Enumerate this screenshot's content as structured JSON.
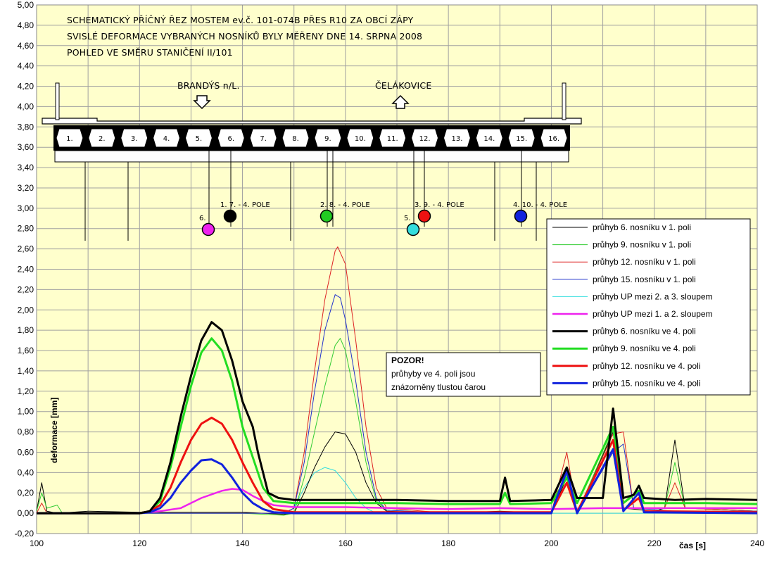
{
  "chart_data": {
    "type": "line",
    "xlabel": "čas [s]",
    "ylabel": "deformace [mm]",
    "xlim": [
      100,
      240
    ],
    "ylim": [
      -0.2,
      5.0
    ],
    "xticks": [
      100,
      120,
      140,
      160,
      180,
      200,
      220,
      240
    ],
    "yticks": [
      "-0,20",
      "0,00",
      "0,20",
      "0,40",
      "0,60",
      "0,80",
      "1,00",
      "1,20",
      "1,40",
      "1,60",
      "1,80",
      "2,00",
      "2,20",
      "2,40",
      "2,60",
      "2,80",
      "3,00",
      "3,20",
      "3,40",
      "3,60",
      "3,80",
      "4,00",
      "4,20",
      "4,40",
      "4,60",
      "4,80",
      "5,00"
    ],
    "grid": true,
    "legend_position": "right",
    "series": [
      {
        "name": "průhyb 6. nosníku v 1. poli",
        "color": "#000000",
        "width": 1,
        "points": [
          [
            100,
            0.02
          ],
          [
            101,
            0.3
          ],
          [
            102,
            0.02
          ],
          [
            104,
            0.0
          ],
          [
            110,
            0.02
          ],
          [
            120,
            0.01
          ],
          [
            140,
            0.01
          ],
          [
            148,
            -0.01
          ],
          [
            150,
            0.0
          ],
          [
            152,
            0.2
          ],
          [
            154,
            0.45
          ],
          [
            156,
            0.65
          ],
          [
            158,
            0.8
          ],
          [
            160,
            0.78
          ],
          [
            162,
            0.6
          ],
          [
            164,
            0.3
          ],
          [
            166,
            0.1
          ],
          [
            168,
            0.02
          ],
          [
            180,
            0.0
          ],
          [
            190,
            0.02
          ],
          [
            200,
            0.0
          ],
          [
            203,
            0.35
          ],
          [
            205,
            0.0
          ],
          [
            212,
            0.8
          ],
          [
            214,
            0.05
          ],
          [
            220,
            0.02
          ],
          [
            222,
            0.05
          ],
          [
            224,
            0.72
          ],
          [
            226,
            0.05
          ],
          [
            240,
            0.02
          ]
        ]
      },
      {
        "name": "průhyb 9. nosníku v 1. poli",
        "color": "#33cc33",
        "width": 1,
        "points": [
          [
            100,
            0.02
          ],
          [
            101,
            0.2
          ],
          [
            102,
            0.05
          ],
          [
            104,
            0.08
          ],
          [
            105,
            0.0
          ],
          [
            120,
            0.0
          ],
          [
            140,
            0.0
          ],
          [
            148,
            -0.02
          ],
          [
            150,
            0.0
          ],
          [
            152,
            0.35
          ],
          [
            154,
            0.8
          ],
          [
            156,
            1.25
          ],
          [
            158,
            1.65
          ],
          [
            159,
            1.72
          ],
          [
            160,
            1.6
          ],
          [
            162,
            1.1
          ],
          [
            164,
            0.5
          ],
          [
            166,
            0.12
          ],
          [
            168,
            0.03
          ],
          [
            180,
            0.0
          ],
          [
            200,
            0.0
          ],
          [
            203,
            0.38
          ],
          [
            205,
            0.0
          ],
          [
            212,
            0.82
          ],
          [
            214,
            0.05
          ],
          [
            222,
            0.05
          ],
          [
            224,
            0.5
          ],
          [
            226,
            0.05
          ],
          [
            240,
            0.02
          ]
        ]
      },
      {
        "name": "průhyb 12. nosníku v 1. poli",
        "color": "#dd2222",
        "width": 1,
        "points": [
          [
            100,
            0.0
          ],
          [
            101,
            0.1
          ],
          [
            102,
            0.0
          ],
          [
            120,
            0.0
          ],
          [
            148,
            0.0
          ],
          [
            150,
            0.05
          ],
          [
            152,
            0.6
          ],
          [
            154,
            1.4
          ],
          [
            156,
            2.1
          ],
          [
            158,
            2.58
          ],
          [
            158.5,
            2.62
          ],
          [
            160,
            2.45
          ],
          [
            162,
            1.7
          ],
          [
            164,
            0.85
          ],
          [
            166,
            0.25
          ],
          [
            168,
            0.05
          ],
          [
            180,
            0.0
          ],
          [
            200,
            0.0
          ],
          [
            203,
            0.6
          ],
          [
            205,
            0.0
          ],
          [
            212,
            0.78
          ],
          [
            214,
            0.8
          ],
          [
            216,
            0.05
          ],
          [
            222,
            0.05
          ],
          [
            224,
            0.3
          ],
          [
            226,
            0.05
          ],
          [
            240,
            0.02
          ]
        ]
      },
      {
        "name": "průhyb 15. nosníku v 1. poli",
        "color": "#2233cc",
        "width": 1,
        "points": [
          [
            100,
            0.0
          ],
          [
            120,
            0.0
          ],
          [
            148,
            0.0
          ],
          [
            150,
            0.05
          ],
          [
            152,
            0.5
          ],
          [
            154,
            1.2
          ],
          [
            156,
            1.8
          ],
          [
            158,
            2.15
          ],
          [
            159,
            2.12
          ],
          [
            160,
            1.9
          ],
          [
            162,
            1.3
          ],
          [
            164,
            0.6
          ],
          [
            166,
            0.15
          ],
          [
            168,
            0.03
          ],
          [
            180,
            0.0
          ],
          [
            200,
            0.0
          ],
          [
            203,
            0.45
          ],
          [
            205,
            0.0
          ],
          [
            212,
            0.6
          ],
          [
            214,
            0.68
          ],
          [
            216,
            0.05
          ],
          [
            224,
            0.02
          ],
          [
            240,
            0.02
          ]
        ]
      },
      {
        "name": "průhyb UP mezi 2. a 3. sloupem",
        "color": "#33dddd",
        "width": 1,
        "points": [
          [
            100,
            0.0
          ],
          [
            148,
            0.0
          ],
          [
            150,
            0.05
          ],
          [
            152,
            0.25
          ],
          [
            154,
            0.4
          ],
          [
            156,
            0.45
          ],
          [
            158,
            0.42
          ],
          [
            160,
            0.3
          ],
          [
            162,
            0.15
          ],
          [
            164,
            0.05
          ],
          [
            166,
            0.0
          ],
          [
            240,
            0.0
          ]
        ]
      },
      {
        "name": "průhyb UP mezi 1. a 2. sloupem",
        "color": "#ee22ee",
        "width": 2.5,
        "points": [
          [
            100,
            0.0
          ],
          [
            120,
            0.0
          ],
          [
            124,
            0.02
          ],
          [
            128,
            0.05
          ],
          [
            132,
            0.15
          ],
          [
            136,
            0.22
          ],
          [
            138,
            0.24
          ],
          [
            140,
            0.23
          ],
          [
            142,
            0.17
          ],
          [
            144,
            0.12
          ],
          [
            146,
            0.08
          ],
          [
            150,
            0.06
          ],
          [
            160,
            0.06
          ],
          [
            170,
            0.05
          ],
          [
            180,
            0.04
          ],
          [
            190,
            0.05
          ],
          [
            200,
            0.04
          ],
          [
            210,
            0.05
          ],
          [
            220,
            0.05
          ],
          [
            230,
            0.05
          ],
          [
            240,
            0.05
          ]
        ]
      },
      {
        "name": "průhyb 6. nosníku ve 4. poli",
        "color": "#000000",
        "width": 3,
        "points": [
          [
            100,
            0.0
          ],
          [
            120,
            0.0
          ],
          [
            122,
            0.02
          ],
          [
            124,
            0.15
          ],
          [
            126,
            0.5
          ],
          [
            128,
            0.95
          ],
          [
            130,
            1.35
          ],
          [
            132,
            1.7
          ],
          [
            134,
            1.88
          ],
          [
            136,
            1.8
          ],
          [
            138,
            1.5
          ],
          [
            140,
            1.1
          ],
          [
            142,
            0.85
          ],
          [
            143,
            0.6
          ],
          [
            145,
            0.2
          ],
          [
            147,
            0.15
          ],
          [
            150,
            0.13
          ],
          [
            160,
            0.13
          ],
          [
            170,
            0.13
          ],
          [
            180,
            0.12
          ],
          [
            190,
            0.12
          ],
          [
            191,
            0.35
          ],
          [
            192,
            0.12
          ],
          [
            200,
            0.13
          ],
          [
            203,
            0.45
          ],
          [
            205,
            0.15
          ],
          [
            210,
            0.15
          ],
          [
            212,
            1.03
          ],
          [
            214,
            0.15
          ],
          [
            216,
            0.18
          ],
          [
            217,
            0.27
          ],
          [
            218,
            0.15
          ],
          [
            224,
            0.13
          ],
          [
            230,
            0.14
          ],
          [
            240,
            0.13
          ]
        ]
      },
      {
        "name": "průhyb 9. nosníku ve 4. poli",
        "color": "#22dd22",
        "width": 3,
        "points": [
          [
            100,
            0.0
          ],
          [
            120,
            0.0
          ],
          [
            122,
            0.02
          ],
          [
            124,
            0.12
          ],
          [
            126,
            0.45
          ],
          [
            128,
            0.85
          ],
          [
            130,
            1.25
          ],
          [
            132,
            1.58
          ],
          [
            134,
            1.72
          ],
          [
            136,
            1.6
          ],
          [
            138,
            1.3
          ],
          [
            140,
            0.85
          ],
          [
            142,
            0.55
          ],
          [
            144,
            0.25
          ],
          [
            146,
            0.12
          ],
          [
            150,
            0.1
          ],
          [
            160,
            0.1
          ],
          [
            170,
            0.1
          ],
          [
            180,
            0.09
          ],
          [
            190,
            0.09
          ],
          [
            191,
            0.2
          ],
          [
            192,
            0.09
          ],
          [
            200,
            0.1
          ],
          [
            203,
            0.35
          ],
          [
            205,
            0.1
          ],
          [
            212,
            0.85
          ],
          [
            214,
            0.1
          ],
          [
            217,
            0.22
          ],
          [
            218,
            0.1
          ],
          [
            230,
            0.1
          ],
          [
            240,
            0.09
          ]
        ]
      },
      {
        "name": "průhyb 12. nosníku ve 4. poli",
        "color": "#ee1111",
        "width": 3,
        "points": [
          [
            100,
            0.0
          ],
          [
            120,
            0.0
          ],
          [
            122,
            0.02
          ],
          [
            124,
            0.08
          ],
          [
            126,
            0.25
          ],
          [
            128,
            0.5
          ],
          [
            130,
            0.72
          ],
          [
            132,
            0.88
          ],
          [
            134,
            0.94
          ],
          [
            136,
            0.88
          ],
          [
            138,
            0.72
          ],
          [
            140,
            0.5
          ],
          [
            142,
            0.3
          ],
          [
            144,
            0.12
          ],
          [
            146,
            0.04
          ],
          [
            150,
            0.01
          ],
          [
            180,
            0.01
          ],
          [
            200,
            0.01
          ],
          [
            203,
            0.3
          ],
          [
            205,
            0.01
          ],
          [
            212,
            0.72
          ],
          [
            214,
            0.03
          ],
          [
            217,
            0.15
          ],
          [
            218,
            0.02
          ],
          [
            240,
            0.01
          ]
        ]
      },
      {
        "name": "průhyb 15. nosníku ve 4. poli",
        "color": "#1122dd",
        "width": 3,
        "points": [
          [
            100,
            0.0
          ],
          [
            120,
            0.0
          ],
          [
            122,
            0.01
          ],
          [
            124,
            0.05
          ],
          [
            126,
            0.15
          ],
          [
            128,
            0.3
          ],
          [
            130,
            0.42
          ],
          [
            132,
            0.52
          ],
          [
            134,
            0.53
          ],
          [
            136,
            0.48
          ],
          [
            138,
            0.35
          ],
          [
            140,
            0.2
          ],
          [
            142,
            0.1
          ],
          [
            144,
            0.04
          ],
          [
            146,
            0.01
          ],
          [
            150,
            0.0
          ],
          [
            180,
            0.0
          ],
          [
            200,
            0.0
          ],
          [
            203,
            0.42
          ],
          [
            205,
            0.0
          ],
          [
            212,
            0.63
          ],
          [
            214,
            0.02
          ],
          [
            217,
            0.2
          ],
          [
            218,
            0.01
          ],
          [
            240,
            0.0
          ]
        ]
      }
    ]
  },
  "title_lines": [
    "SCHEMATICKÝ PŘÍČNÝ ŘEZ MOSTEM ev.č. 101-074B PŘES R10 ZA OBCÍ ZÁPY",
    "SVISLÉ DEFORMACE VYBRANÝCH NOSNÍKŮ BYLY MĚŘENY DNE 14. SRPNA  2008",
    "POHLED VE SMĚRU STANIČENÍ II/101"
  ],
  "direction_labels": {
    "left": "BRANDÝS n/L.",
    "right": "ČELÁKOVICE"
  },
  "beam_labels": [
    "1.",
    "2.",
    "3.",
    "4.",
    "5.",
    "6.",
    "7.",
    "8.",
    "9.",
    "10.",
    "11.",
    "12.",
    "13.",
    "14.",
    "15.",
    "16."
  ],
  "markers": [
    {
      "label": "6.",
      "color": "#ee22ee"
    },
    {
      "label": "1.   7. - 4. POLE",
      "color": "#000000"
    },
    {
      "label": "2.   8. - 4. POLE",
      "color": "#22cc22"
    },
    {
      "label": "5.",
      "color": "#33dddd"
    },
    {
      "label": "3.   9. - 4. POLE",
      "color": "#ee1111"
    },
    {
      "label": "4.   10. - 4. POLE",
      "color": "#1122dd"
    }
  ],
  "note": {
    "heading": "POZOR!",
    "line1": "průhyby ve 4. poli jsou",
    "line2": "znázorněny tlustou čarou"
  }
}
